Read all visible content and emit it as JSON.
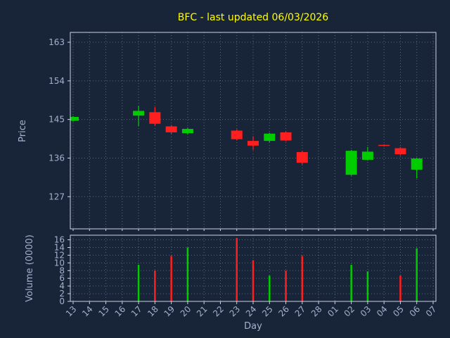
{
  "header": {
    "title": "BFC - last updated 06/03/2026"
  },
  "colors": {
    "background": "#182438",
    "plot_background": "#182438",
    "title": "#ffff00",
    "axis_text": "#a4b1cc",
    "grid": "#aab8cc",
    "spine": "#cdd5e3",
    "up": "#00cc00",
    "down": "#ff1f1f"
  },
  "chart_data": [
    {
      "type": "candlestick",
      "title": "BFC - last updated 06/03/2026",
      "ylabel": "Price",
      "ylim": [
        119.5,
        165.3
      ],
      "yticks": [
        127,
        136,
        145,
        154,
        163
      ],
      "grid": "dotted",
      "categories": [
        "13",
        "14",
        "15",
        "16",
        "17",
        "18",
        "19",
        "20",
        "21",
        "22",
        "23",
        "24",
        "25",
        "26",
        "27",
        "28",
        "01",
        "02",
        "03",
        "04",
        "05",
        "06",
        "07"
      ],
      "candles": [
        {
          "day": "13",
          "open": 144.7,
          "high": 145.8,
          "low": 144.5,
          "close": 145.6
        },
        {
          "day": "17",
          "open": 145.9,
          "high": 148.2,
          "low": 143.4,
          "close": 147.0
        },
        {
          "day": "18",
          "open": 146.7,
          "high": 147.9,
          "low": 143.6,
          "close": 144.0
        },
        {
          "day": "19",
          "open": 143.4,
          "high": 143.7,
          "low": 141.6,
          "close": 142.0
        },
        {
          "day": "20",
          "open": 141.8,
          "high": 143.1,
          "low": 141.5,
          "close": 142.8
        },
        {
          "day": "23",
          "open": 142.4,
          "high": 142.7,
          "low": 140.1,
          "close": 140.4
        },
        {
          "day": "24",
          "open": 140.0,
          "high": 141.1,
          "low": 137.9,
          "close": 138.9
        },
        {
          "day": "25",
          "open": 140.0,
          "high": 141.9,
          "low": 139.7,
          "close": 141.7
        },
        {
          "day": "26",
          "open": 142.0,
          "high": 142.2,
          "low": 139.9,
          "close": 140.1
        },
        {
          "day": "27",
          "open": 137.4,
          "high": 137.7,
          "low": 134.5,
          "close": 134.9
        },
        {
          "day": "02",
          "open": 132.1,
          "high": 137.9,
          "low": 131.9,
          "close": 137.7
        },
        {
          "day": "03",
          "open": 135.6,
          "high": 138.6,
          "low": 135.4,
          "close": 137.5
        },
        {
          "day": "04",
          "open": 139.0,
          "high": 139.2,
          "low": 138.7,
          "close": 138.9
        },
        {
          "day": "05",
          "open": 138.3,
          "high": 138.6,
          "low": 136.6,
          "close": 136.9
        },
        {
          "day": "06",
          "open": 133.3,
          "high": 136.1,
          "low": 131.3,
          "close": 135.9
        }
      ]
    },
    {
      "type": "bar",
      "ylabel": "Volume (0000)",
      "xlabel": "Day",
      "ylim": [
        0,
        17.2
      ],
      "yticks": [
        0,
        2,
        4,
        6,
        8,
        10,
        12,
        14,
        16
      ],
      "grid": "dotted",
      "categories": [
        "13",
        "14",
        "15",
        "16",
        "17",
        "18",
        "19",
        "20",
        "21",
        "22",
        "23",
        "24",
        "25",
        "26",
        "27",
        "28",
        "01",
        "02",
        "03",
        "04",
        "05",
        "06",
        "07"
      ],
      "bars": [
        {
          "day": "17",
          "value": 9.5,
          "direction": "up"
        },
        {
          "day": "18",
          "value": 8.0,
          "direction": "down"
        },
        {
          "day": "19",
          "value": 11.8,
          "direction": "down"
        },
        {
          "day": "20",
          "value": 14.0,
          "direction": "up"
        },
        {
          "day": "23",
          "value": 16.5,
          "direction": "down"
        },
        {
          "day": "24",
          "value": 10.7,
          "direction": "down"
        },
        {
          "day": "25",
          "value": 6.7,
          "direction": "up"
        },
        {
          "day": "26",
          "value": 8.0,
          "direction": "down"
        },
        {
          "day": "27",
          "value": 11.8,
          "direction": "down"
        },
        {
          "day": "02",
          "value": 9.5,
          "direction": "up"
        },
        {
          "day": "03",
          "value": 7.8,
          "direction": "up"
        },
        {
          "day": "05",
          "value": 6.7,
          "direction": "down"
        },
        {
          "day": "06",
          "value": 13.8,
          "direction": "up"
        }
      ]
    }
  ]
}
